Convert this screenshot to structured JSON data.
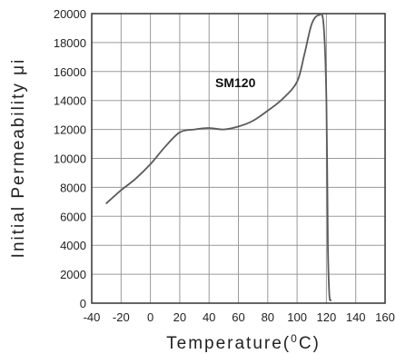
{
  "chart_data": {
    "type": "line",
    "title": "",
    "xlabel_main": "Temperature(",
    "xlabel_sup": "0",
    "xlabel_end": "C)",
    "ylabel": "Initial Permeability  μi",
    "xlim": [
      -40,
      160
    ],
    "ylim": [
      0,
      20000
    ],
    "xticks": [
      -40,
      -20,
      0,
      20,
      40,
      60,
      80,
      100,
      120,
      140,
      160
    ],
    "yticks": [
      0,
      2000,
      4000,
      6000,
      8000,
      10000,
      12000,
      14000,
      16000,
      18000,
      20000
    ],
    "grid": true,
    "annotation": "SM120",
    "series": [
      {
        "name": "SM120",
        "x": [
          -30,
          -20,
          -10,
          0,
          10,
          20,
          30,
          40,
          50,
          60,
          70,
          80,
          90,
          100,
          105,
          110,
          115,
          118,
          120,
          121,
          122,
          123
        ],
        "y": [
          6900,
          7800,
          8600,
          9600,
          10800,
          11800,
          12000,
          12100,
          12000,
          12200,
          12600,
          13300,
          14100,
          15300,
          17200,
          19300,
          19900,
          19300,
          14000,
          4000,
          600,
          200
        ]
      }
    ]
  }
}
